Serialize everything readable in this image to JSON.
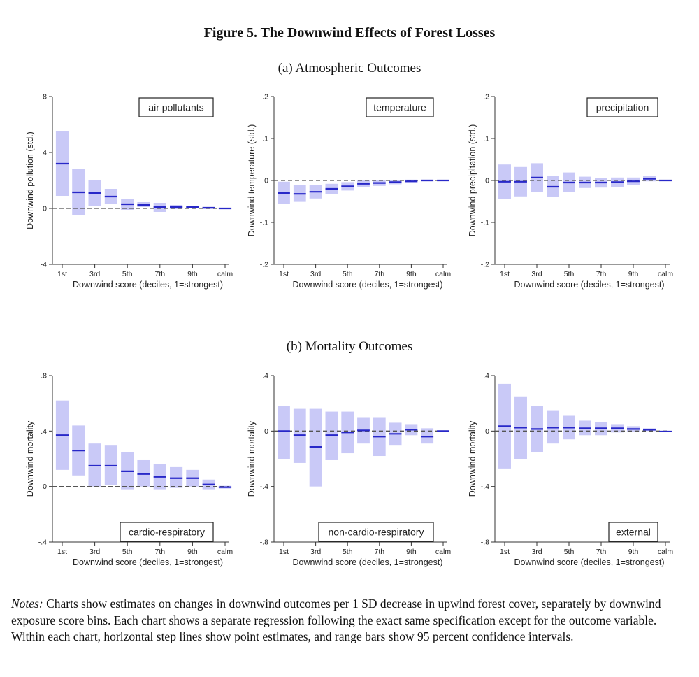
{
  "figure_title": "Figure 5. The Downwind Effects of Forest Losses",
  "panel_a_title": "(a)  Atmospheric Outcomes",
  "panel_b_title": "(b)  Mortality Outcomes",
  "notes": {
    "label": "Notes:",
    "text": " Charts show estimates on changes in downwind outcomes per 1 SD decrease in upwind forest cover, separately by downwind exposure score bins. Each chart shows a separate regression following the exact same specification except for the outcome variable. Within each chart, horizontal step lines show point estimates, and range bars show 95 percent confidence intervals."
  },
  "colors": {
    "ci_fill": "#c9c9f7",
    "estimate": "#2828c8",
    "zero_line": "#555555",
    "axis": "#333333"
  },
  "chart_data": [
    {
      "type": "bar",
      "panel": "a",
      "legend_label": "air pollutants",
      "legend_position": "top-right",
      "xlabel": "Downwind score (deciles, 1=strongest)",
      "ylabel": "Downwind pollution (std.)",
      "categories": [
        "1st",
        "2nd",
        "3rd",
        "4th",
        "5th",
        "6th",
        "7th",
        "8th",
        "9th",
        "10th",
        "calm"
      ],
      "x_tick_labels": [
        "1st",
        "3rd",
        "5th",
        "7th",
        "9th",
        "calm"
      ],
      "ylim": [
        -4,
        8
      ],
      "y_ticks": [
        -4,
        0,
        4,
        8
      ],
      "y_tick_labels": [
        "-4",
        "0",
        "4",
        "8"
      ],
      "estimates": [
        3.2,
        1.15,
        1.1,
        0.85,
        0.3,
        0.25,
        0.1,
        0.1,
        0.1,
        0.05,
        0.0
      ],
      "ci_low": [
        0.9,
        -0.5,
        0.2,
        0.3,
        -0.1,
        0.1,
        -0.25,
        -0.05,
        0.0,
        -0.05,
        -0.05
      ],
      "ci_high": [
        5.5,
        2.8,
        2.0,
        1.4,
        0.7,
        0.45,
        0.4,
        0.25,
        0.2,
        0.1,
        0.05
      ]
    },
    {
      "type": "bar",
      "panel": "a",
      "legend_label": "temperature",
      "legend_position": "top-right",
      "xlabel": "Downwind score (deciles, 1=strongest)",
      "ylabel": "Downwind temperature (std.)",
      "categories": [
        "1st",
        "2nd",
        "3rd",
        "4th",
        "5th",
        "6th",
        "7th",
        "8th",
        "9th",
        "10th",
        "calm"
      ],
      "x_tick_labels": [
        "1st",
        "3rd",
        "5th",
        "7th",
        "9th",
        "calm"
      ],
      "ylim": [
        -0.2,
        0.2
      ],
      "y_ticks": [
        -0.2,
        -0.1,
        0,
        0.1,
        0.2
      ],
      "y_tick_labels": [
        "-.2",
        "-.1",
        "0",
        ".1",
        ".2"
      ],
      "estimates": [
        -0.03,
        -0.032,
        -0.027,
        -0.02,
        -0.014,
        -0.008,
        -0.006,
        -0.004,
        -0.002,
        0.0,
        0.0
      ],
      "ci_low": [
        -0.056,
        -0.051,
        -0.043,
        -0.032,
        -0.024,
        -0.016,
        -0.013,
        -0.009,
        -0.006,
        -0.002,
        -0.001
      ],
      "ci_high": [
        -0.003,
        -0.011,
        -0.01,
        -0.008,
        -0.004,
        0.0,
        0.0,
        0.001,
        0.002,
        0.002,
        0.001
      ]
    },
    {
      "type": "bar",
      "panel": "a",
      "legend_label": "precipitation",
      "legend_position": "top-right",
      "xlabel": "Downwind score (deciles, 1=strongest)",
      "ylabel": "Downwind precipitation (std.)",
      "categories": [
        "1st",
        "2nd",
        "3rd",
        "4th",
        "5th",
        "6th",
        "7th",
        "8th",
        "9th",
        "10th",
        "calm"
      ],
      "x_tick_labels": [
        "1st",
        "3rd",
        "5th",
        "7th",
        "9th",
        "calm"
      ],
      "ylim": [
        -0.2,
        0.2
      ],
      "y_ticks": [
        -0.2,
        -0.1,
        0,
        0.1,
        0.2
      ],
      "y_tick_labels": [
        "-.2",
        "-.1",
        "0",
        ".1",
        ".2"
      ],
      "estimates": [
        -0.003,
        -0.003,
        0.007,
        -0.015,
        -0.005,
        -0.005,
        -0.005,
        -0.004,
        -0.002,
        0.004,
        0.0
      ],
      "ci_low": [
        -0.044,
        -0.038,
        -0.028,
        -0.04,
        -0.027,
        -0.018,
        -0.017,
        -0.015,
        -0.011,
        -0.002,
        -0.001
      ],
      "ci_high": [
        0.038,
        0.032,
        0.041,
        0.01,
        0.019,
        0.009,
        0.006,
        0.007,
        0.007,
        0.011,
        0.001
      ]
    },
    {
      "type": "bar",
      "panel": "b",
      "legend_label": "cardio-respiratory",
      "legend_position": "bottom-right",
      "xlabel": "Downwind score (deciles, 1=strongest)",
      "ylabel": "Downwind mortality",
      "categories": [
        "1st",
        "2nd",
        "3rd",
        "4th",
        "5th",
        "6th",
        "7th",
        "8th",
        "9th",
        "10th",
        "calm"
      ],
      "x_tick_labels": [
        "1st",
        "3rd",
        "5th",
        "7th",
        "9th",
        "calm"
      ],
      "ylim": [
        -0.4,
        0.8
      ],
      "y_ticks": [
        -0.4,
        0,
        0.4,
        0.8
      ],
      "y_tick_labels": [
        "-.4",
        "0",
        ".4",
        ".8"
      ],
      "estimates": [
        0.37,
        0.26,
        0.15,
        0.15,
        0.11,
        0.09,
        0.07,
        0.06,
        0.06,
        0.015,
        -0.005
      ],
      "ci_low": [
        0.12,
        0.08,
        0.0,
        0.01,
        -0.02,
        0.0,
        -0.02,
        -0.01,
        0.0,
        -0.02,
        -0.015
      ],
      "ci_high": [
        0.62,
        0.44,
        0.31,
        0.3,
        0.25,
        0.19,
        0.16,
        0.14,
        0.12,
        0.05,
        0.005
      ]
    },
    {
      "type": "bar",
      "panel": "b",
      "legend_label": "non-cardio-respiratory",
      "legend_position": "bottom-right",
      "xlabel": "Downwind score (deciles, 1=strongest)",
      "ylabel": "Downwind mortality",
      "categories": [
        "1st",
        "2nd",
        "3rd",
        "4th",
        "5th",
        "6th",
        "7th",
        "8th",
        "9th",
        "10th",
        "calm"
      ],
      "x_tick_labels": [
        "1st",
        "3rd",
        "5th",
        "7th",
        "9th",
        "calm"
      ],
      "ylim": [
        -0.8,
        0.4
      ],
      "y_ticks": [
        -0.8,
        -0.4,
        0,
        0.4
      ],
      "y_tick_labels": [
        "-.8",
        "-.4",
        "0",
        ".4"
      ],
      "estimates": [
        0.0,
        -0.03,
        -0.115,
        -0.03,
        -0.01,
        0.005,
        -0.04,
        -0.02,
        0.01,
        -0.04,
        0.0
      ],
      "ci_low": [
        -0.2,
        -0.23,
        -0.4,
        -0.21,
        -0.16,
        -0.09,
        -0.18,
        -0.1,
        -0.03,
        -0.09,
        -0.005
      ],
      "ci_high": [
        0.18,
        0.16,
        0.16,
        0.14,
        0.14,
        0.1,
        0.1,
        0.06,
        0.05,
        0.02,
        0.005
      ]
    },
    {
      "type": "bar",
      "panel": "b",
      "legend_label": "external",
      "legend_position": "bottom-right",
      "xlabel": "Downwind score (deciles, 1=strongest)",
      "ylabel": "Downwind mortality",
      "categories": [
        "1st",
        "2nd",
        "3rd",
        "4th",
        "5th",
        "6th",
        "7th",
        "8th",
        "9th",
        "10th",
        "calm"
      ],
      "x_tick_labels": [
        "1st",
        "3rd",
        "5th",
        "7th",
        "9th",
        "calm"
      ],
      "ylim": [
        -0.8,
        0.4
      ],
      "y_ticks": [
        -0.8,
        -0.4,
        0,
        0.4
      ],
      "y_tick_labels": [
        "-.8",
        "-.4",
        "0",
        ".4"
      ],
      "estimates": [
        0.035,
        0.025,
        0.015,
        0.025,
        0.025,
        0.02,
        0.02,
        0.02,
        0.015,
        0.01,
        -0.003
      ],
      "ci_low": [
        -0.27,
        -0.2,
        -0.15,
        -0.09,
        -0.06,
        -0.03,
        -0.03,
        -0.01,
        -0.005,
        0.0,
        -0.005
      ],
      "ci_high": [
        0.34,
        0.25,
        0.18,
        0.15,
        0.11,
        0.075,
        0.065,
        0.05,
        0.035,
        0.02,
        0.0
      ]
    }
  ]
}
